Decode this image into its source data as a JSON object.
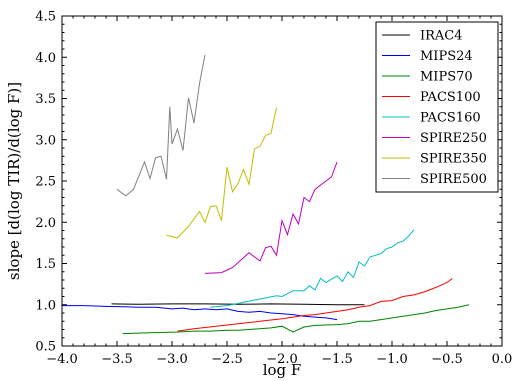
{
  "chart_data": {
    "type": "line",
    "xlabel": "log F",
    "ylabel": "slope [d(log TIR)/d(log F)]",
    "xlim": [
      -4.0,
      0.0
    ],
    "ylim": [
      0.5,
      4.5
    ],
    "xticks": [
      "−4.0",
      "−3.5",
      "−3.0",
      "−2.5",
      "−2.0",
      "−1.5",
      "−1.0",
      "−0.5",
      "0.0"
    ],
    "yticks": [
      "0.5",
      "1.0",
      "1.5",
      "2.0",
      "2.5",
      "3.0",
      "3.5",
      "4.0",
      "4.5"
    ],
    "grid": false,
    "legend_position": "top-right",
    "series": [
      {
        "name": "IRAC4",
        "color": "#000000",
        "x": [
          -3.55,
          -3.3,
          -3.0,
          -2.7,
          -2.4,
          -2.1,
          -1.8,
          -1.5,
          -1.25
        ],
        "y": [
          1.01,
          1.005,
          1.01,
          1.01,
          1.005,
          1.01,
          1.005,
          1.0,
          1.0
        ]
      },
      {
        "name": "MIPS24",
        "color": "#0000ee",
        "x": [
          -4.0,
          -3.8,
          -3.6,
          -3.45,
          -3.3,
          -3.15,
          -3.0,
          -2.9,
          -2.8,
          -2.7,
          -2.6,
          -2.5,
          -2.4,
          -2.3,
          -2.2,
          -2.1,
          -2.0,
          -1.9,
          -1.8,
          -1.7,
          -1.6,
          -1.5
        ],
        "y": [
          0.99,
          0.99,
          0.98,
          0.975,
          0.97,
          0.97,
          0.95,
          0.96,
          0.94,
          0.95,
          0.94,
          0.95,
          0.92,
          0.91,
          0.92,
          0.9,
          0.89,
          0.88,
          0.86,
          0.85,
          0.84,
          0.82
        ]
      },
      {
        "name": "MIPS70",
        "color": "#008000",
        "x": [
          -3.45,
          -3.2,
          -2.95,
          -2.8,
          -2.65,
          -2.5,
          -2.4,
          -2.3,
          -2.2,
          -2.1,
          -2.0,
          -1.9,
          -1.8,
          -1.7,
          -1.5,
          -1.4,
          -1.3,
          -1.2,
          -1.1,
          -1.0,
          -0.9,
          -0.8,
          -0.7,
          -0.6,
          -0.5,
          -0.4,
          -0.3
        ],
        "y": [
          0.65,
          0.66,
          0.67,
          0.68,
          0.68,
          0.69,
          0.69,
          0.7,
          0.71,
          0.72,
          0.74,
          0.67,
          0.73,
          0.75,
          0.76,
          0.77,
          0.8,
          0.8,
          0.82,
          0.84,
          0.86,
          0.88,
          0.9,
          0.93,
          0.95,
          0.97,
          1.0
        ]
      },
      {
        "name": "PACS100",
        "color": "#ff0000",
        "x": [
          -2.95,
          -2.8,
          -2.6,
          -2.4,
          -2.2,
          -2.0,
          -1.9,
          -1.8,
          -1.7,
          -1.6,
          -1.5,
          -1.4,
          -1.3,
          -1.2,
          -1.1,
          -1.0,
          -0.9,
          -0.8,
          -0.7,
          -0.6,
          -0.5,
          -0.45
        ],
        "y": [
          0.68,
          0.71,
          0.74,
          0.77,
          0.8,
          0.83,
          0.85,
          0.87,
          0.88,
          0.9,
          0.92,
          0.94,
          0.97,
          0.99,
          1.04,
          1.05,
          1.1,
          1.12,
          1.16,
          1.21,
          1.27,
          1.32
        ]
      },
      {
        "name": "PACS160",
        "color": "#00bfbf",
        "x": [
          -2.65,
          -2.5,
          -2.35,
          -2.2,
          -2.05,
          -2.0,
          -1.9,
          -1.8,
          -1.75,
          -1.7,
          -1.65,
          -1.6,
          -1.5,
          -1.45,
          -1.4,
          -1.35,
          -1.3,
          -1.25,
          -1.2,
          -1.15,
          -1.1,
          -1.05,
          -1.0,
          -0.95,
          -0.9,
          -0.85,
          -0.8
        ],
        "y": [
          0.97,
          0.99,
          1.03,
          1.07,
          1.11,
          1.1,
          1.17,
          1.17,
          1.23,
          1.18,
          1.32,
          1.27,
          1.35,
          1.28,
          1.4,
          1.33,
          1.52,
          1.47,
          1.58,
          1.6,
          1.62,
          1.68,
          1.7,
          1.75,
          1.77,
          1.83,
          1.91
        ]
      },
      {
        "name": "SPIRE250",
        "color": "#bf00bf",
        "x": [
          -2.7,
          -2.55,
          -2.45,
          -2.35,
          -2.3,
          -2.2,
          -2.15,
          -2.1,
          -2.05,
          -2.0,
          -1.95,
          -1.9,
          -1.85,
          -1.8,
          -1.75,
          -1.7,
          -1.65,
          -1.6,
          -1.55,
          -1.5
        ],
        "y": [
          1.38,
          1.39,
          1.45,
          1.57,
          1.63,
          1.53,
          1.69,
          1.71,
          1.6,
          2.02,
          1.85,
          2.1,
          1.98,
          2.3,
          2.25,
          2.4,
          2.45,
          2.5,
          2.55,
          2.73
        ]
      },
      {
        "name": "SPIRE350",
        "color": "#bfbf00",
        "x": [
          -3.05,
          -2.95,
          -2.85,
          -2.75,
          -2.7,
          -2.65,
          -2.6,
          -2.55,
          -2.5,
          -2.45,
          -2.4,
          -2.35,
          -2.3,
          -2.25,
          -2.2,
          -2.15,
          -2.1,
          -2.05
        ],
        "y": [
          1.84,
          1.81,
          1.95,
          2.13,
          2.0,
          2.19,
          2.2,
          2.02,
          2.67,
          2.37,
          2.47,
          2.64,
          2.46,
          2.89,
          2.92,
          3.05,
          3.08,
          3.39
        ]
      },
      {
        "name": "SPIRE500",
        "color": "#808080",
        "x": [
          -3.5,
          -3.42,
          -3.35,
          -3.25,
          -3.2,
          -3.15,
          -3.1,
          -3.05,
          -3.02,
          -3.0,
          -2.95,
          -2.9,
          -2.85,
          -2.8,
          -2.75,
          -2.7
        ],
        "y": [
          2.4,
          2.32,
          2.4,
          2.73,
          2.53,
          2.78,
          2.8,
          2.52,
          3.4,
          2.95,
          3.13,
          2.87,
          3.51,
          3.2,
          3.68,
          4.03
        ]
      }
    ]
  }
}
